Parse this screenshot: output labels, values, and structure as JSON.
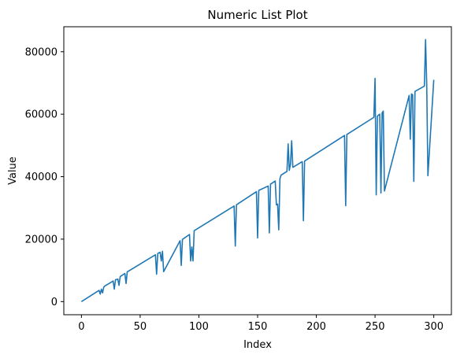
{
  "chart_data": {
    "type": "line",
    "title": "Numeric List Plot",
    "xlabel": "Index",
    "ylabel": "Value",
    "xlim": [
      -15,
      315
    ],
    "ylim": [
      -4200,
      88000
    ],
    "xticks": [
      0,
      50,
      100,
      150,
      200,
      250,
      300
    ],
    "yticks": [
      0,
      20000,
      40000,
      60000,
      80000
    ],
    "grid": false,
    "line_color": "#1f77b4",
    "series": [
      {
        "x": [
          0,
          15,
          16,
          17,
          18,
          19,
          20,
          27,
          28,
          29,
          31,
          32,
          33,
          37,
          38,
          39,
          63,
          64,
          65,
          67,
          68,
          69,
          70,
          84,
          85,
          86,
          92,
          93,
          94,
          95,
          96,
          130,
          131,
          132,
          149,
          150,
          151,
          159,
          160,
          161,
          165,
          166,
          167,
          168,
          169,
          170,
          175,
          176,
          177,
          178,
          179,
          180,
          188,
          189,
          190,
          224,
          225,
          226,
          249,
          250,
          251,
          252,
          254,
          255,
          256,
          257,
          258,
          279,
          280,
          281,
          282,
          283,
          284,
          292,
          293,
          294,
          295,
          300
        ],
        "y": [
          0,
          3600,
          2400,
          4000,
          2800,
          4600,
          5000,
          6600,
          4000,
          7000,
          7200,
          5200,
          8000,
          9000,
          5800,
          9500,
          15000,
          8800,
          15400,
          15800,
          13000,
          16100,
          9600,
          19500,
          11600,
          19900,
          21500,
          13000,
          17500,
          13000,
          22700,
          30600,
          17800,
          31000,
          35200,
          20400,
          35600,
          37000,
          22000,
          37600,
          38600,
          31000,
          31200,
          23000,
          39300,
          40500,
          41700,
          50500,
          42000,
          44000,
          51500,
          43000,
          44800,
          25900,
          45000,
          53200,
          30700,
          53500,
          59000,
          71500,
          34200,
          59400,
          60000,
          34800,
          60400,
          61000,
          35400,
          66000,
          52000,
          66500,
          66200,
          38500,
          67300,
          69000,
          83900,
          69500,
          40300,
          71000
        ]
      }
    ]
  }
}
